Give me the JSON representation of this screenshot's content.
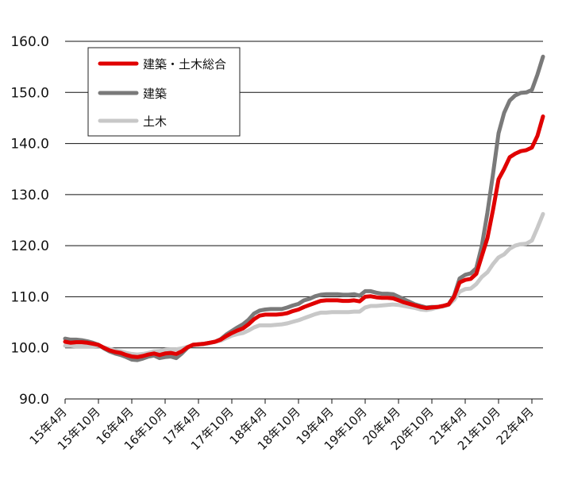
{
  "chart_data": {
    "type": "line",
    "title": "",
    "xlabel": "",
    "ylabel": "",
    "ylim": [
      90,
      160
    ],
    "y_ticks": [
      "90.0",
      "100.0",
      "110.0",
      "120.0",
      "130.0",
      "140.0",
      "150.0",
      "160.0"
    ],
    "grid": true,
    "legend_position": "top-left",
    "x_tick_labels": [
      "15年4月",
      "15年10月",
      "16年4月",
      "16年10月",
      "17年4月",
      "17年10月",
      "18年4月",
      "18年10月",
      "19年4月",
      "19年10月",
      "20年4月",
      "20年10月",
      "21年4月",
      "21年10月",
      "22年4月"
    ],
    "x_tick_index": [
      0,
      6,
      12,
      18,
      24,
      30,
      36,
      42,
      48,
      54,
      60,
      66,
      72,
      78,
      84
    ],
    "x_count": 87,
    "series": [
      {
        "name": "建築・土木総合",
        "color": "#e00000",
        "values": [
          101.2,
          101.0,
          101.1,
          101.1,
          101.0,
          100.8,
          100.6,
          100.0,
          99.5,
          99.2,
          99.0,
          98.6,
          98.3,
          98.2,
          98.4,
          98.7,
          98.9,
          98.6,
          98.9,
          99.0,
          98.8,
          99.3,
          100.1,
          100.6,
          100.7,
          100.8,
          101.0,
          101.2,
          101.6,
          102.3,
          102.9,
          103.4,
          103.8,
          104.6,
          105.6,
          106.3,
          106.5,
          106.5,
          106.5,
          106.6,
          106.8,
          107.2,
          107.5,
          108.0,
          108.4,
          108.8,
          109.2,
          109.3,
          109.3,
          109.3,
          109.2,
          109.2,
          109.3,
          109.1,
          110.0,
          110.1,
          109.9,
          109.8,
          109.8,
          109.7,
          109.3,
          108.9,
          108.6,
          108.3,
          108.0,
          107.8,
          107.9,
          108.0,
          108.2,
          108.5,
          110.0,
          112.8,
          113.3,
          113.5,
          114.5,
          118.0,
          121.5,
          127.0,
          133.0,
          135.0,
          137.3,
          138.0,
          138.5,
          138.7,
          139.2,
          141.5,
          145.3
        ]
      },
      {
        "name": "建築",
        "color": "#7a7a7a",
        "values": [
          101.8,
          101.6,
          101.6,
          101.5,
          101.3,
          101.0,
          100.6,
          99.9,
          99.3,
          98.9,
          98.6,
          98.2,
          97.7,
          97.6,
          97.9,
          98.3,
          98.5,
          98.0,
          98.2,
          98.3,
          98.0,
          98.9,
          100.0,
          100.6,
          100.7,
          100.8,
          101.0,
          101.2,
          101.7,
          102.6,
          103.3,
          104.0,
          104.6,
          105.5,
          106.7,
          107.3,
          107.5,
          107.6,
          107.6,
          107.6,
          107.9,
          108.3,
          108.6,
          109.3,
          109.6,
          110.1,
          110.4,
          110.5,
          110.5,
          110.5,
          110.4,
          110.4,
          110.5,
          110.2,
          111.1,
          111.1,
          110.8,
          110.6,
          110.6,
          110.5,
          110.0,
          109.5,
          109.0,
          108.5,
          108.2,
          107.9,
          108.0,
          108.0,
          108.2,
          108.5,
          110.2,
          113.6,
          114.3,
          114.6,
          115.6,
          120.0,
          126.5,
          134.0,
          142.0,
          146.0,
          148.4,
          149.4,
          149.9,
          150.0,
          150.5,
          153.5,
          157.0
        ]
      },
      {
        "name": "土木",
        "color": "#c8c8c8",
        "values": [
          100.4,
          100.4,
          100.3,
          100.3,
          100.3,
          100.3,
          100.4,
          100.1,
          99.8,
          99.5,
          99.3,
          99.0,
          98.8,
          98.7,
          98.8,
          99.0,
          99.3,
          99.4,
          99.6,
          99.7,
          99.7,
          99.9,
          100.2,
          100.5,
          100.6,
          100.7,
          100.9,
          101.2,
          101.4,
          101.9,
          102.4,
          102.7,
          102.9,
          103.4,
          104.0,
          104.4,
          104.4,
          104.4,
          104.5,
          104.6,
          104.8,
          105.1,
          105.4,
          105.8,
          106.2,
          106.6,
          106.9,
          106.9,
          107.0,
          107.0,
          107.0,
          107.0,
          107.1,
          107.1,
          107.9,
          108.2,
          108.2,
          108.3,
          108.4,
          108.5,
          108.4,
          108.2,
          108.0,
          107.8,
          107.5,
          107.4,
          107.6,
          107.9,
          108.1,
          108.4,
          109.4,
          111.0,
          111.5,
          111.6,
          112.5,
          113.9,
          114.8,
          116.4,
          117.7,
          118.3,
          119.4,
          120.0,
          120.3,
          120.4,
          121.0,
          123.5,
          126.2
        ]
      }
    ]
  }
}
